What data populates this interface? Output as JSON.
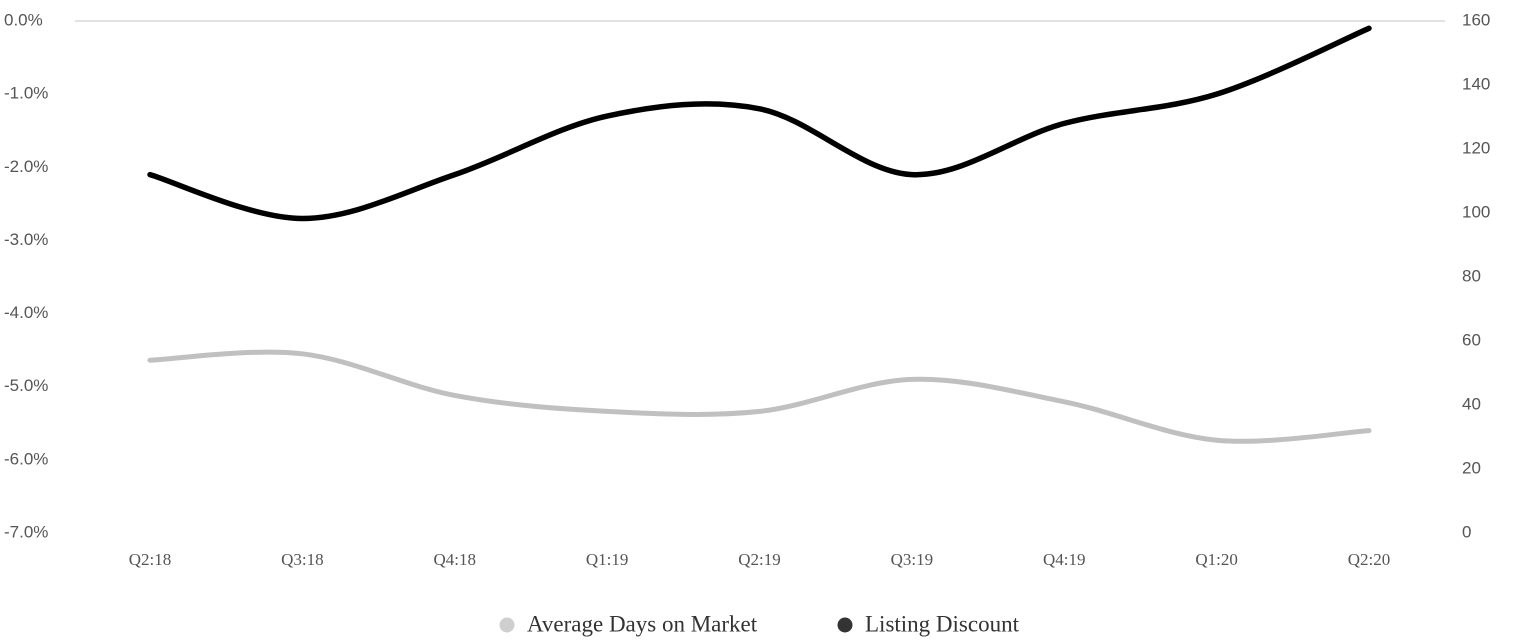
{
  "chart_data": {
    "type": "line",
    "categories": [
      "Q2:18",
      "Q3:18",
      "Q4:18",
      "Q1:19",
      "Q2:19",
      "Q3:19",
      "Q4:19",
      "Q1:20",
      "Q2:20"
    ],
    "series": [
      {
        "name": "Average Days on Market",
        "color": "#c0c0c0",
        "axis": "y2",
        "values": [
          54,
          56,
          43,
          38,
          38,
          48,
          41,
          29,
          32
        ]
      },
      {
        "name": "Listing Discount",
        "color": "#000000",
        "values": [
          -2.1,
          -2.7,
          -2.1,
          -1.3,
          -1.2,
          -2.1,
          -1.4,
          -1.0,
          -0.1
        ]
      }
    ],
    "ylim": [
      -7,
      0
    ],
    "yticks": [
      {
        "value": 0,
        "label": "0.0%"
      },
      {
        "value": -1,
        "label": "-1.0%"
      },
      {
        "value": -2,
        "label": "-2.0%"
      },
      {
        "value": -3,
        "label": "-3.0%"
      },
      {
        "value": -4,
        "label": "-4.0%"
      },
      {
        "value": -5,
        "label": "-5.0%"
      },
      {
        "value": -6,
        "label": "-6.0%"
      },
      {
        "value": -7,
        "label": "-7.0%"
      }
    ],
    "y2lim": [
      0,
      160
    ],
    "y2ticks": [
      0,
      20,
      40,
      60,
      80,
      100,
      120,
      140,
      160
    ],
    "legend": "bottom"
  }
}
